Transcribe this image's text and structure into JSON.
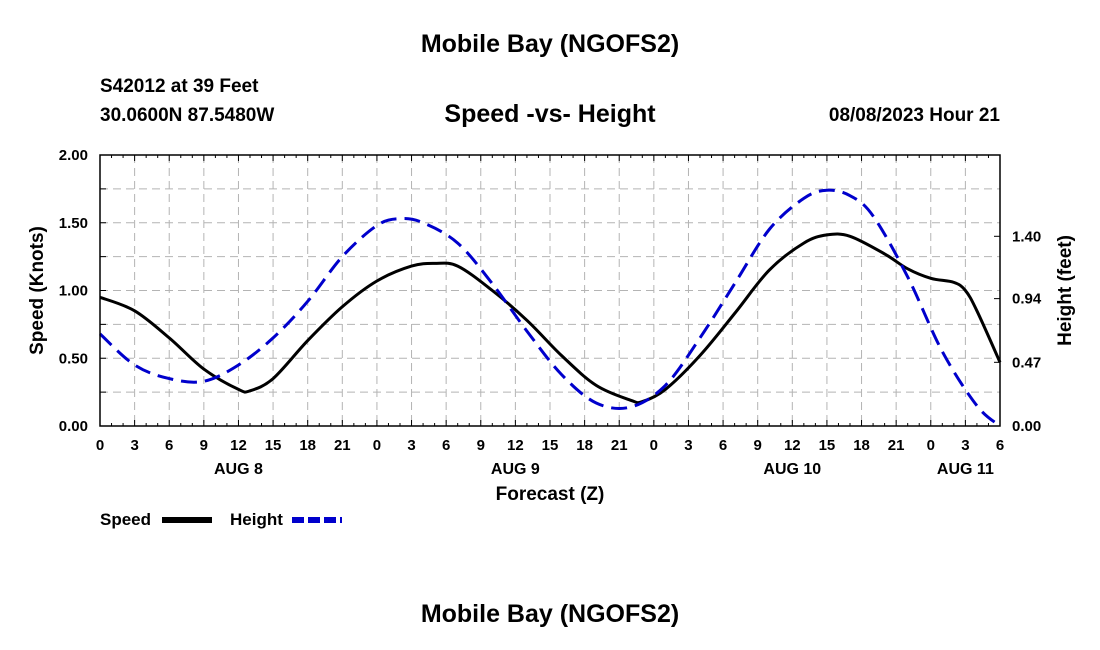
{
  "header": {
    "title": "Mobile Bay (NGOFS2)",
    "station": "S42012 at 39 Feet",
    "coordinates": "30.0600N  87.5480W",
    "subtitle": "Speed -vs- Height",
    "datetime": "08/08/2023 Hour 21"
  },
  "footer": {
    "title": "Mobile Bay (NGOFS2)"
  },
  "chart_data": {
    "type": "line",
    "title": "Speed -vs- Height",
    "xlabel": "Forecast (Z)",
    "ylabel": "Speed (Knots)",
    "ylabel_right": "Height (feet)",
    "x_unit": "hours from 2023-08-08 00Z",
    "x_range": [
      0,
      78
    ],
    "ylim": [
      0,
      2.0
    ],
    "ylim_right": [
      0,
      2.0
    ],
    "yticks": [
      0,
      0.5,
      1.0,
      1.5,
      2.0
    ],
    "ytick_labels": [
      "0.00",
      "0.50",
      "1.00",
      "1.50",
      "2.00"
    ],
    "yticks_right": [
      0,
      0.47,
      0.94,
      1.4
    ],
    "ytick_labels_right": [
      "0.00",
      "0.47",
      "0.94",
      "1.40"
    ],
    "xtick_labels": [
      "0",
      "3",
      "6",
      "9",
      "12",
      "15",
      "18",
      "21",
      "0",
      "3",
      "6",
      "9",
      "12",
      "15",
      "18",
      "21",
      "0",
      "3",
      "6",
      "9",
      "12",
      "15",
      "18",
      "21",
      "0",
      "3",
      "6"
    ],
    "day_labels": [
      {
        "label": "AUG 8",
        "x": 12
      },
      {
        "label": "AUG 9",
        "x": 36
      },
      {
        "label": "AUG 10",
        "x": 60
      },
      {
        "label": "AUG 11",
        "x": 75
      }
    ],
    "grid": true,
    "legend": "bottom-left",
    "series": [
      {
        "name": "Speed",
        "color": "#000000",
        "style": "solid",
        "axis": "left",
        "x": [
          0,
          3,
          6,
          9,
          12,
          13,
          15,
          18,
          21,
          24,
          27,
          29,
          31,
          34,
          37,
          40,
          43,
          46,
          47,
          49,
          52,
          55,
          58,
          61,
          63,
          65,
          68,
          70,
          72,
          74,
          75,
          76,
          78
        ],
        "y": [
          0.95,
          0.85,
          0.65,
          0.42,
          0.27,
          0.26,
          0.35,
          0.63,
          0.88,
          1.07,
          1.18,
          1.2,
          1.18,
          1.0,
          0.78,
          0.52,
          0.3,
          0.19,
          0.18,
          0.27,
          0.52,
          0.83,
          1.15,
          1.35,
          1.41,
          1.4,
          1.27,
          1.16,
          1.09,
          1.06,
          1.0,
          0.85,
          0.47
        ]
      },
      {
        "name": "Height",
        "color": "#0000cc",
        "style": "dashed",
        "axis": "right",
        "x": [
          0,
          3,
          6,
          9,
          12,
          15,
          18,
          21,
          24,
          26,
          28,
          31,
          34,
          37,
          40,
          43,
          46,
          49,
          52,
          55,
          58,
          61,
          63,
          65,
          67,
          70,
          73,
          76,
          78
        ],
        "y": [
          0.68,
          0.45,
          0.35,
          0.33,
          0.45,
          0.65,
          0.92,
          1.25,
          1.48,
          1.53,
          1.5,
          1.35,
          1.05,
          0.7,
          0.38,
          0.17,
          0.14,
          0.3,
          0.65,
          1.05,
          1.45,
          1.68,
          1.74,
          1.7,
          1.55,
          1.1,
          0.55,
          0.15,
          0.0
        ]
      }
    ]
  }
}
